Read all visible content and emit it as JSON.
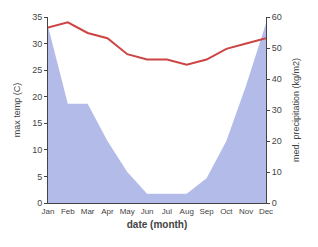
{
  "chart_data": {
    "type": "line",
    "xlabel": "date (month)",
    "ylabel": "max temp (C)",
    "y2label": "med. precipitation (kg/m2)",
    "categories": [
      "Jan",
      "Feb",
      "Mar",
      "Apr",
      "May",
      "Jun",
      "Jul",
      "Aug",
      "Sep",
      "Oct",
      "Nov",
      "Dec"
    ],
    "series": [
      {
        "type": "area",
        "color": "#b3bce8",
        "axis": "y2",
        "values": [
          57,
          32,
          32,
          20,
          10,
          3,
          3,
          3,
          8,
          20,
          38,
          58
        ]
      },
      {
        "type": "line",
        "color": "#cc4444",
        "values": [
          33,
          34,
          32,
          31,
          28,
          27,
          27,
          26,
          27,
          29,
          30,
          31
        ]
      }
    ],
    "ylim": [
      0,
      35
    ],
    "yticks": [
      0,
      5,
      10,
      15,
      20,
      25,
      30,
      35
    ],
    "y2lim": [
      0,
      60
    ],
    "y2ticks": [
      0,
      10,
      20,
      30,
      40,
      50,
      60
    ],
    "grid": false
  }
}
